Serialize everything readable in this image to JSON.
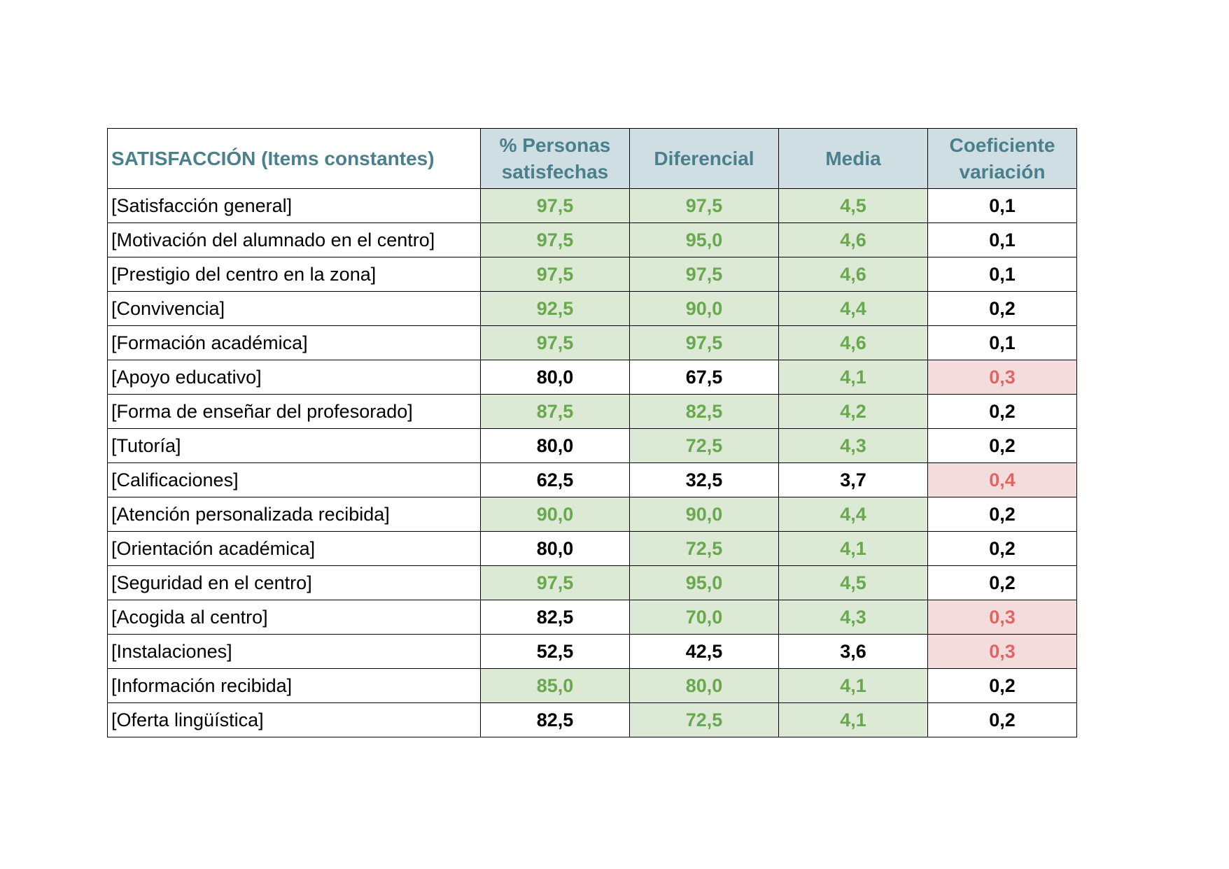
{
  "table": {
    "headers": {
      "item": "SATISFACCIÓN (Items constantes)",
      "personas_line1": "% Personas",
      "personas_line2": "satisfechas",
      "diferencial": "Diferencial",
      "media": "Media",
      "coef_line1": "Coeficiente",
      "coef_line2": "variación"
    },
    "colors": {
      "header_bg": "#cfdee3",
      "header_text": "#4a7f8c",
      "good_bg": "#dbe9d5",
      "good_text": "#6aa84f",
      "bad_bg": "#f4dcdc",
      "bad_text": "#e06666"
    },
    "rows": [
      {
        "item": "[Satisfacción general]",
        "personas": {
          "v": "97,5",
          "s": "good"
        },
        "diferencial": {
          "v": "97,5",
          "s": "good"
        },
        "media": {
          "v": "4,5",
          "s": "good"
        },
        "coef": {
          "v": "0,1",
          "s": "plain"
        }
      },
      {
        "item": "[Motivación del alumnado en el centro]",
        "personas": {
          "v": "97,5",
          "s": "good"
        },
        "diferencial": {
          "v": "95,0",
          "s": "good"
        },
        "media": {
          "v": "4,6",
          "s": "good"
        },
        "coef": {
          "v": "0,1",
          "s": "plain"
        }
      },
      {
        "item": "[Prestigio del centro en la zona]",
        "personas": {
          "v": "97,5",
          "s": "good"
        },
        "diferencial": {
          "v": "97,5",
          "s": "good"
        },
        "media": {
          "v": "4,6",
          "s": "good"
        },
        "coef": {
          "v": "0,1",
          "s": "plain"
        }
      },
      {
        "item": "[Convivencia]",
        "personas": {
          "v": "92,5",
          "s": "good"
        },
        "diferencial": {
          "v": "90,0",
          "s": "good"
        },
        "media": {
          "v": "4,4",
          "s": "good"
        },
        "coef": {
          "v": "0,2",
          "s": "plain"
        }
      },
      {
        "item": "[Formación académica]",
        "personas": {
          "v": "97,5",
          "s": "good"
        },
        "diferencial": {
          "v": "97,5",
          "s": "good"
        },
        "media": {
          "v": "4,6",
          "s": "good"
        },
        "coef": {
          "v": "0,1",
          "s": "plain"
        }
      },
      {
        "item": "[Apoyo educativo]",
        "personas": {
          "v": "80,0",
          "s": "plain"
        },
        "diferencial": {
          "v": "67,5",
          "s": "plain"
        },
        "media": {
          "v": "4,1",
          "s": "good"
        },
        "coef": {
          "v": "0,3",
          "s": "bad"
        }
      },
      {
        "item": "[Forma de enseñar del profesorado]",
        "personas": {
          "v": "87,5",
          "s": "good"
        },
        "diferencial": {
          "v": "82,5",
          "s": "good"
        },
        "media": {
          "v": "4,2",
          "s": "good"
        },
        "coef": {
          "v": "0,2",
          "s": "plain"
        }
      },
      {
        "item": "[Tutoría]",
        "personas": {
          "v": "80,0",
          "s": "plain"
        },
        "diferencial": {
          "v": "72,5",
          "s": "good"
        },
        "media": {
          "v": "4,3",
          "s": "good"
        },
        "coef": {
          "v": "0,2",
          "s": "plain"
        }
      },
      {
        "item": "[Calificaciones]",
        "personas": {
          "v": "62,5",
          "s": "plain"
        },
        "diferencial": {
          "v": "32,5",
          "s": "plain"
        },
        "media": {
          "v": "3,7",
          "s": "plain"
        },
        "coef": {
          "v": "0,4",
          "s": "bad"
        }
      },
      {
        "item": "[Atención personalizada recibida]",
        "personas": {
          "v": "90,0",
          "s": "good"
        },
        "diferencial": {
          "v": "90,0",
          "s": "good"
        },
        "media": {
          "v": "4,4",
          "s": "good"
        },
        "coef": {
          "v": "0,2",
          "s": "plain"
        }
      },
      {
        "item": "[Orientación académica]",
        "personas": {
          "v": "80,0",
          "s": "plain"
        },
        "diferencial": {
          "v": "72,5",
          "s": "good"
        },
        "media": {
          "v": "4,1",
          "s": "good"
        },
        "coef": {
          "v": "0,2",
          "s": "plain"
        }
      },
      {
        "item": "[Seguridad en el centro]",
        "personas": {
          "v": "97,5",
          "s": "good"
        },
        "diferencial": {
          "v": "95,0",
          "s": "good"
        },
        "media": {
          "v": "4,5",
          "s": "good"
        },
        "coef": {
          "v": "0,2",
          "s": "plain"
        }
      },
      {
        "item": "[Acogida al centro]",
        "personas": {
          "v": "82,5",
          "s": "plain"
        },
        "diferencial": {
          "v": "70,0",
          "s": "good"
        },
        "media": {
          "v": "4,3",
          "s": "good"
        },
        "coef": {
          "v": "0,3",
          "s": "bad"
        }
      },
      {
        "item": "[Instalaciones]",
        "personas": {
          "v": "52,5",
          "s": "plain"
        },
        "diferencial": {
          "v": "42,5",
          "s": "plain"
        },
        "media": {
          "v": "3,6",
          "s": "plain"
        },
        "coef": {
          "v": "0,3",
          "s": "bad"
        }
      },
      {
        "item": "[Información recibida]",
        "personas": {
          "v": "85,0",
          "s": "good"
        },
        "diferencial": {
          "v": "80,0",
          "s": "good"
        },
        "media": {
          "v": "4,1",
          "s": "good"
        },
        "coef": {
          "v": "0,2",
          "s": "plain"
        }
      },
      {
        "item": "[Oferta lingüística]",
        "personas": {
          "v": "82,5",
          "s": "plain"
        },
        "diferencial": {
          "v": "72,5",
          "s": "good"
        },
        "media": {
          "v": "4,1",
          "s": "good"
        },
        "coef": {
          "v": "0,2",
          "s": "plain"
        }
      }
    ]
  }
}
